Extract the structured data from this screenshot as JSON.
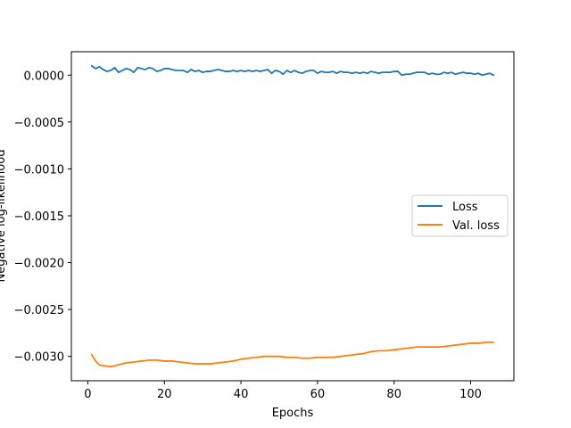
{
  "chart_data": {
    "type": "line",
    "title": "",
    "xlabel": "Epochs",
    "ylabel": "Negative log-likelihood",
    "xlim": [
      -4.3,
      111.3
    ],
    "ylim": [
      -0.00326,
      0.00025
    ],
    "xticks": [
      0,
      20,
      40,
      60,
      80,
      100
    ],
    "xtick_labels": [
      "0",
      "20",
      "40",
      "60",
      "80",
      "100"
    ],
    "yticks": [
      0.0,
      -0.0005,
      -0.001,
      -0.0015,
      -0.002,
      -0.0025,
      -0.003
    ],
    "ytick_labels": [
      "0.0000",
      "−0.0005",
      "−0.0010",
      "−0.0015",
      "−0.0020",
      "−0.0025",
      "−0.0030"
    ],
    "grid": false,
    "legend_position": "center-right",
    "series": [
      {
        "name": "Loss",
        "color": "#1f77b4",
        "x": [
          1,
          2,
          3,
          4,
          5,
          6,
          7,
          8,
          9,
          10,
          11,
          12,
          13,
          14,
          15,
          16,
          17,
          18,
          19,
          20,
          21,
          22,
          23,
          24,
          25,
          26,
          27,
          28,
          29,
          30,
          31,
          32,
          33,
          34,
          35,
          36,
          37,
          38,
          39,
          40,
          41,
          42,
          43,
          44,
          45,
          46,
          47,
          48,
          49,
          50,
          51,
          52,
          53,
          54,
          55,
          56,
          57,
          58,
          59,
          60,
          61,
          62,
          63,
          64,
          65,
          66,
          67,
          68,
          69,
          70,
          71,
          72,
          73,
          74,
          75,
          76,
          77,
          78,
          79,
          80,
          81,
          82,
          83,
          84,
          85,
          86,
          87,
          88,
          89,
          90,
          91,
          92,
          93,
          94,
          95,
          96,
          97,
          98,
          99,
          100,
          101,
          102,
          103,
          104,
          105,
          106
        ],
        "y": [
          0.0001,
          7e-05,
          9e-05,
          6e-05,
          4e-05,
          5e-05,
          8e-05,
          3e-05,
          5e-05,
          7e-05,
          6e-05,
          3e-05,
          8e-05,
          7e-05,
          6e-05,
          8e-05,
          7e-05,
          4e-05,
          5e-05,
          7e-05,
          7e-05,
          6e-05,
          5e-05,
          5e-05,
          5e-05,
          3e-05,
          6e-05,
          4e-05,
          5e-05,
          3e-05,
          4e-05,
          4e-05,
          5e-05,
          6e-05,
          5e-05,
          4e-05,
          4e-05,
          5e-05,
          4e-05,
          5e-05,
          4e-05,
          5e-05,
          4e-05,
          5e-05,
          4e-05,
          5e-05,
          6e-05,
          2e-05,
          5e-05,
          4e-05,
          1e-05,
          5e-05,
          3e-05,
          5e-05,
          3e-05,
          2e-05,
          4e-05,
          5e-05,
          5e-05,
          2e-05,
          4e-05,
          3e-05,
          3e-05,
          4e-05,
          2e-05,
          4e-05,
          3e-05,
          3e-05,
          2e-05,
          3e-05,
          2e-05,
          3e-05,
          2e-05,
          4e-05,
          3e-05,
          2e-05,
          3e-05,
          3e-05,
          3e-05,
          4e-05,
          4e-05,
          0.0,
          1e-05,
          1e-05,
          2e-05,
          3e-05,
          3e-05,
          3e-05,
          1e-05,
          2e-05,
          1e-05,
          1e-05,
          3e-05,
          2e-05,
          3e-05,
          1e-05,
          2e-05,
          3e-05,
          2e-05,
          2e-05,
          1e-05,
          2e-05,
          0.0,
          1e-05,
          2e-05,
          0.0
        ]
      },
      {
        "name": "Val. loss",
        "color": "#ff7f0e",
        "x": [
          1,
          2,
          3,
          4,
          6,
          8,
          10,
          12,
          14,
          16,
          18,
          20,
          22,
          24,
          26,
          28,
          30,
          32,
          34,
          36,
          38,
          40,
          42,
          44,
          46,
          48,
          50,
          52,
          54,
          56,
          58,
          60,
          62,
          64,
          66,
          68,
          70,
          72,
          74,
          76,
          78,
          80,
          82,
          84,
          86,
          88,
          90,
          92,
          94,
          96,
          98,
          100,
          102,
          104,
          106
        ],
        "y": [
          -0.00298,
          -0.00305,
          -0.00309,
          -0.0031,
          -0.00311,
          -0.00309,
          -0.00307,
          -0.00306,
          -0.00305,
          -0.00304,
          -0.00304,
          -0.00305,
          -0.00305,
          -0.00306,
          -0.00307,
          -0.00308,
          -0.00308,
          -0.00308,
          -0.00307,
          -0.00306,
          -0.00305,
          -0.00303,
          -0.00302,
          -0.00301,
          -0.003,
          -0.003,
          -0.003,
          -0.00301,
          -0.00301,
          -0.00302,
          -0.00302,
          -0.00301,
          -0.00301,
          -0.00301,
          -0.003,
          -0.00299,
          -0.00298,
          -0.00297,
          -0.00295,
          -0.00294,
          -0.00294,
          -0.00293,
          -0.00292,
          -0.00291,
          -0.0029,
          -0.0029,
          -0.0029,
          -0.0029,
          -0.00289,
          -0.00288,
          -0.00287,
          -0.00286,
          -0.00286,
          -0.00285,
          -0.00285
        ]
      }
    ]
  }
}
